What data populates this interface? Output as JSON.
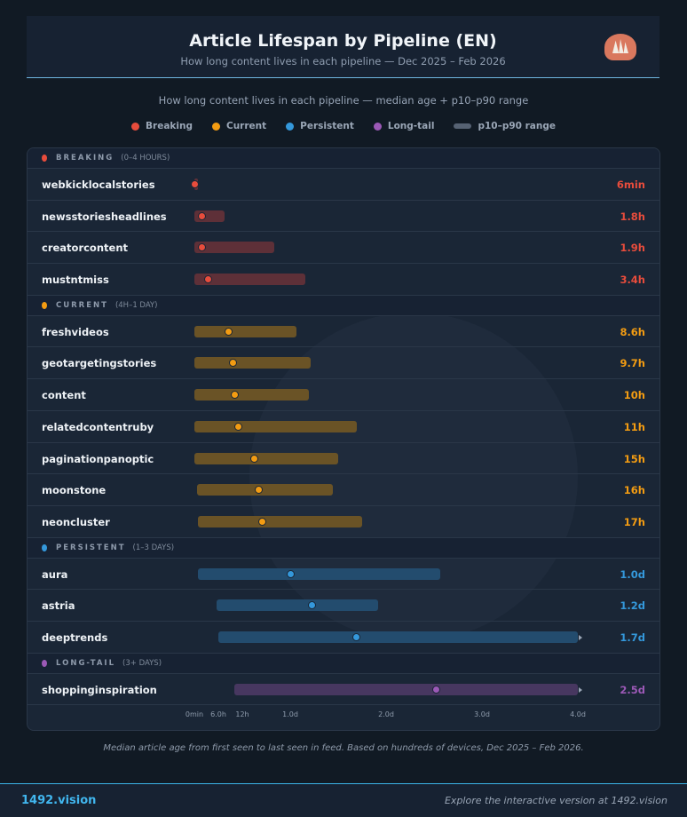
{
  "header": {
    "title": "Article Lifespan by Pipeline (EN)",
    "subtitle": "How long content lives in each pipeline — Dec 2025 – Feb 2026"
  },
  "lede": "How long content lives in each pipeline — median age + p10–p90 range",
  "legend": [
    {
      "label": "Breaking",
      "color": "#e74c3c"
    },
    {
      "label": "Current",
      "color": "#f39c12"
    },
    {
      "label": "Persistent",
      "color": "#3498db"
    },
    {
      "label": "Long-tail",
      "color": "#9b59b6"
    },
    {
      "label": "p10–p90 range",
      "color": "#566273"
    }
  ],
  "chart_data": {
    "type": "range-dot",
    "x_unit": "hours",
    "xlim": [
      0,
      96
    ],
    "ticks": [
      {
        "label": "0min",
        "value": 0
      },
      {
        "label": "6.0h",
        "value": 6
      },
      {
        "label": "12h",
        "value": 12
      },
      {
        "label": "1.0d",
        "value": 24
      },
      {
        "label": "2.0d",
        "value": 48
      },
      {
        "label": "3.0d",
        "value": 72
      },
      {
        "label": "4.0d",
        "value": 96
      }
    ],
    "groups": [
      {
        "name": "BREAKING",
        "range": "(0–4 HOURS)",
        "color": "#e74c3c",
        "bar": "#5e3038",
        "rows": [
          {
            "label": "webkicklocalstories",
            "median": 0.1,
            "p10": 0,
            "p90": 0.2,
            "value": "6min"
          },
          {
            "label": "newsstoriesheadlines",
            "median": 1.8,
            "p10": 0,
            "p90": 7.5,
            "value": "1.8h"
          },
          {
            "label": "creatorcontent",
            "median": 1.9,
            "p10": 0,
            "p90": 20,
            "value": "1.9h"
          },
          {
            "label": "mustntmiss",
            "median": 3.4,
            "p10": 0,
            "p90": 27.8,
            "value": "3.4h"
          }
        ]
      },
      {
        "name": "CURRENT",
        "range": "(4H–1 DAY)",
        "color": "#f39c12",
        "bar": "#6a5326",
        "rows": [
          {
            "label": "freshvideos",
            "median": 8.6,
            "p10": 0,
            "p90": 25.5,
            "value": "8.6h"
          },
          {
            "label": "geotargetingstories",
            "median": 9.7,
            "p10": 0,
            "p90": 29,
            "value": "9.7h"
          },
          {
            "label": "content",
            "median": 10,
            "p10": 0,
            "p90": 28.7,
            "value": "10h"
          },
          {
            "label": "relatedcontentruby",
            "median": 11,
            "p10": 0,
            "p90": 40.7,
            "value": "11h"
          },
          {
            "label": "paginationpanoptic",
            "median": 15,
            "p10": 0,
            "p90": 36,
            "value": "15h"
          },
          {
            "label": "moonstone",
            "median": 16,
            "p10": 0.7,
            "p90": 34.7,
            "value": "16h"
          },
          {
            "label": "neoncluster",
            "median": 17,
            "p10": 0.9,
            "p90": 42,
            "value": "17h"
          }
        ]
      },
      {
        "name": "PERSISTENT",
        "range": "(1–3 DAYS)",
        "color": "#3498db",
        "bar": "#234c6e",
        "rows": [
          {
            "label": "aura",
            "median": 24,
            "p10": 0.9,
            "p90": 61.5,
            "value": "1.0d"
          },
          {
            "label": "astria",
            "median": 29.5,
            "p10": 5.5,
            "p90": 46,
            "value": "1.2d"
          },
          {
            "label": "deeptrends",
            "median": 40.5,
            "p10": 6,
            "p90": 96,
            "value": "1.7d",
            "clipped": true
          }
        ]
      },
      {
        "name": "LONG-TAIL",
        "range": "(3+ DAYS)",
        "color": "#9b59b6",
        "bar": "#473760",
        "rows": [
          {
            "label": "shoppinginspiration",
            "median": 60.5,
            "p10": 10,
            "p90": 96,
            "value": "2.5d",
            "clipped": true
          }
        ]
      }
    ]
  },
  "caption": "Median article age from first seen to last seen in feed. Based on hundreds of devices, Dec 2025 – Feb 2026.",
  "footer": {
    "brand": "1492.vision",
    "link": "Explore the interactive version at 1492.vision"
  }
}
